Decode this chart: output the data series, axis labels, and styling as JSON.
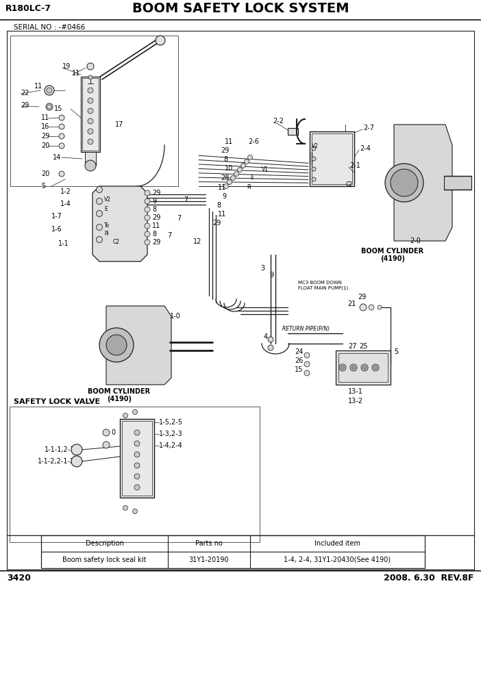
{
  "title_left": "R180LC-7",
  "title_center": "BOOM SAFETY LOCK SYSTEM",
  "page_number": "3420",
  "date_rev": "2008. 6.30  REV.8F",
  "serial_no": "SERIAL NO : -#0466",
  "bg_color": "#ffffff",
  "table_headers": [
    "Description",
    "Parts no",
    "Included item"
  ],
  "table_row": [
    "Boom safety lock seal kit",
    "31Y1-20190",
    "1-4, 2-4, 31Y1-20430(See 4190)"
  ],
  "safety_lock_label": "SAFETY LOCK VALVE",
  "boom_cyl_right": [
    "BOOM CYLINDER",
    "(4190)"
  ],
  "boom_cyl_left": [
    "BOOM CYLINDER",
    "(4190)"
  ],
  "return_pipe": "RETURN PIPE(P/N)"
}
